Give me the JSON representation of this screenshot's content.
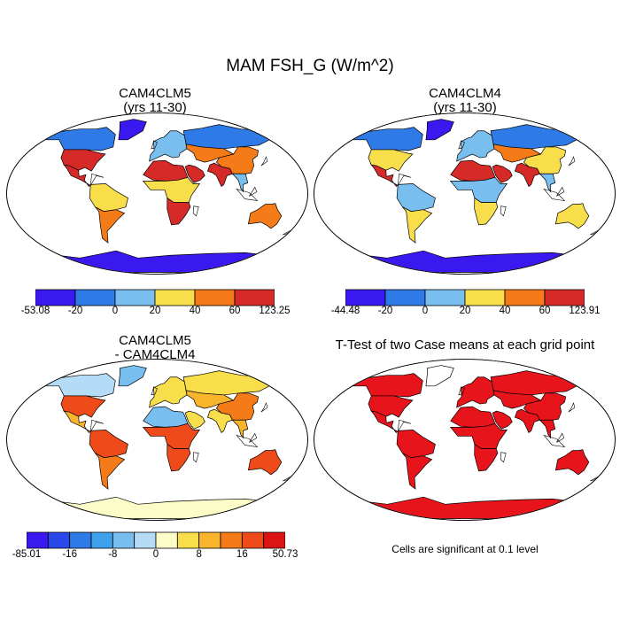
{
  "figure": {
    "title": "MAM FSH_G (W/m^2)",
    "note": "Cells are significant at 0.1 level"
  },
  "colors": {
    "ocean": "#ffffff",
    "coast": "#000000",
    "ttest_red": "#e8141b"
  },
  "chart_data": [
    {
      "type": "heatmap",
      "projection": "robinson",
      "title": "CAM4CLM5",
      "subtitle": "(yrs 11-30)",
      "colorbar": {
        "labels": [
          "-53.08",
          "-20",
          "0",
          "20",
          "40",
          "60",
          "123.25"
        ],
        "bounds": [
          -53.08,
          -20,
          0,
          20,
          40,
          60,
          123.25
        ],
        "colors": [
          "#3a18f0",
          "#2e7ae6",
          "#78bff0",
          "#f8de4a",
          "#f57a18",
          "#d62a28"
        ]
      },
      "regions": [
        {
          "name": "Antarctica",
          "value": -30
        },
        {
          "name": "Greenland",
          "value": -30
        },
        {
          "name": "Canada",
          "value": -10
        },
        {
          "name": "Siberia",
          "value": -10
        },
        {
          "name": "United States",
          "value": 65
        },
        {
          "name": "Mexico",
          "value": 70
        },
        {
          "name": "Amazon",
          "value": 35
        },
        {
          "name": "South America south",
          "value": 55
        },
        {
          "name": "Sahara",
          "value": 70
        },
        {
          "name": "Arabia",
          "value": 75
        },
        {
          "name": "Central Africa",
          "value": 30
        },
        {
          "name": "Southern Africa",
          "value": 60
        },
        {
          "name": "Europe",
          "value": 10
        },
        {
          "name": "Central Asia",
          "value": 55
        },
        {
          "name": "India",
          "value": 75
        },
        {
          "name": "China",
          "value": 45
        },
        {
          "name": "Southeast Asia",
          "value": 15
        },
        {
          "name": "Australia",
          "value": 55
        }
      ]
    },
    {
      "type": "heatmap",
      "projection": "robinson",
      "title": "CAM4CLM4",
      "subtitle": "(yrs 11-30)",
      "colorbar": {
        "labels": [
          "-44.48",
          "-20",
          "0",
          "20",
          "40",
          "60",
          "123.91"
        ],
        "bounds": [
          -44.48,
          -20,
          0,
          20,
          40,
          60,
          123.91
        ],
        "colors": [
          "#3a18f0",
          "#2e7ae6",
          "#78bff0",
          "#f8de4a",
          "#f57a18",
          "#d62a28"
        ]
      },
      "regions": [
        {
          "name": "Antarctica",
          "value": -30
        },
        {
          "name": "Greenland",
          "value": -30
        },
        {
          "name": "Canada",
          "value": -10
        },
        {
          "name": "Siberia",
          "value": -10
        },
        {
          "name": "United States",
          "value": 35
        },
        {
          "name": "Mexico",
          "value": 65
        },
        {
          "name": "Amazon",
          "value": 10
        },
        {
          "name": "South America south",
          "value": 25
        },
        {
          "name": "Sahara",
          "value": 70
        },
        {
          "name": "Arabia",
          "value": 70
        },
        {
          "name": "Central Africa",
          "value": 10
        },
        {
          "name": "Southern Africa",
          "value": 30
        },
        {
          "name": "Europe",
          "value": 5
        },
        {
          "name": "Central Asia",
          "value": 45
        },
        {
          "name": "India",
          "value": 70
        },
        {
          "name": "China",
          "value": 30
        },
        {
          "name": "Southeast Asia",
          "value": 10
        },
        {
          "name": "Australia",
          "value": 35
        }
      ]
    },
    {
      "type": "heatmap",
      "projection": "robinson",
      "title": "CAM4CLM5",
      "subtitle": "- CAM4CLM4",
      "colorbar": {
        "labels": [
          "-85.01",
          "-16",
          "-8",
          "0",
          "8",
          "16",
          "50.73"
        ],
        "label_positions": [
          0,
          2,
          4,
          6,
          8,
          10,
          12
        ],
        "bounds": [
          -85.01,
          -24,
          -16,
          -12,
          -8,
          -4,
          0,
          4,
          8,
          12,
          16,
          24,
          50.73
        ],
        "colors": [
          "#3a18f0",
          "#2a48ea",
          "#2e7ae6",
          "#3fa0ec",
          "#78bff0",
          "#b4dcf6",
          "#fcfcc8",
          "#f8de4a",
          "#f8b42a",
          "#f57a18",
          "#ee4a1a",
          "#dd1414"
        ]
      },
      "regions": [
        {
          "name": "Antarctica",
          "value": 2
        },
        {
          "name": "Greenland",
          "value": -6
        },
        {
          "name": "Canada",
          "value": -2
        },
        {
          "name": "Siberia",
          "value": 6
        },
        {
          "name": "United States",
          "value": 18
        },
        {
          "name": "Mexico",
          "value": 10
        },
        {
          "name": "Amazon",
          "value": 18
        },
        {
          "name": "South America south",
          "value": 14
        },
        {
          "name": "Sahara",
          "value": -6
        },
        {
          "name": "Arabia",
          "value": 6
        },
        {
          "name": "Central Africa",
          "value": 18
        },
        {
          "name": "Southern Africa",
          "value": 20
        },
        {
          "name": "Europe",
          "value": 6
        },
        {
          "name": "Central Asia",
          "value": 8
        },
        {
          "name": "India",
          "value": 4
        },
        {
          "name": "China",
          "value": 14
        },
        {
          "name": "Southeast Asia",
          "value": 10
        },
        {
          "name": "Australia",
          "value": 16
        }
      ]
    },
    {
      "type": "heatmap",
      "projection": "robinson",
      "title": "T-Test of two Case means at each grid point",
      "significance_level": 0.1,
      "regions": [
        {
          "name": "Antarctica",
          "significant": true
        },
        {
          "name": "Greenland",
          "significant": false
        },
        {
          "name": "Canada",
          "significant": true
        },
        {
          "name": "Siberia",
          "significant": true
        },
        {
          "name": "United States",
          "significant": true
        },
        {
          "name": "Mexico",
          "significant": true
        },
        {
          "name": "Amazon",
          "significant": true
        },
        {
          "name": "South America south",
          "significant": true
        },
        {
          "name": "Sahara",
          "significant": true
        },
        {
          "name": "Arabia",
          "significant": true
        },
        {
          "name": "Central Africa",
          "significant": true
        },
        {
          "name": "Southern Africa",
          "significant": true
        },
        {
          "name": "Europe",
          "significant": true
        },
        {
          "name": "Central Asia",
          "significant": true
        },
        {
          "name": "India",
          "significant": true
        },
        {
          "name": "China",
          "significant": true
        },
        {
          "name": "Southeast Asia",
          "significant": true
        },
        {
          "name": "Australia",
          "significant": true
        }
      ]
    }
  ]
}
